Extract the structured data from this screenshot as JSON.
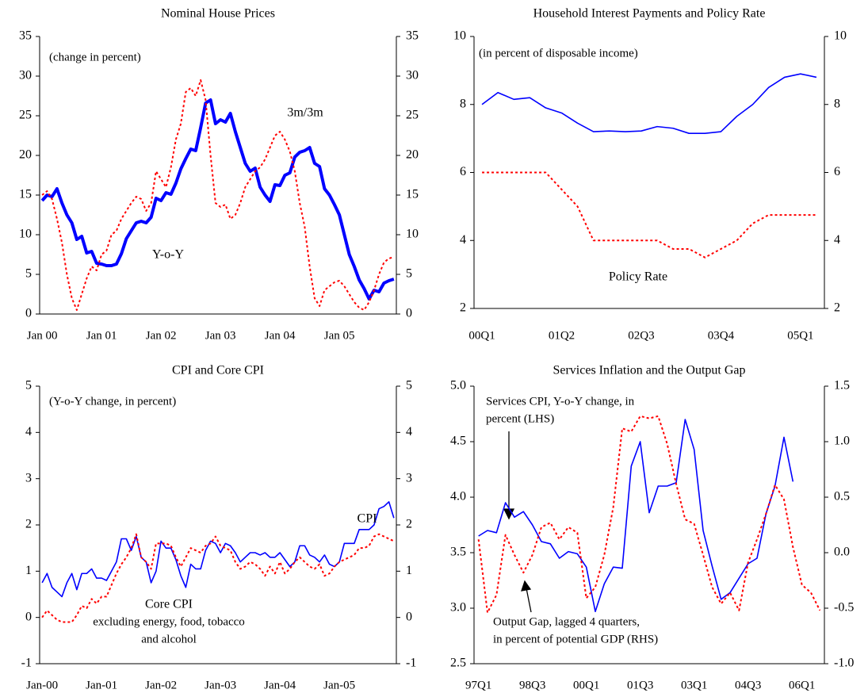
{
  "chart_data": [
    {
      "type": "line",
      "title": "Nominal House Prices",
      "categories": [
        "Jan 00",
        null,
        null,
        null,
        null,
        null,
        null,
        null,
        null,
        null,
        null,
        null,
        "Jan 01",
        null,
        null,
        null,
        null,
        null,
        null,
        null,
        null,
        null,
        null,
        null,
        "Jan 02",
        null,
        null,
        null,
        null,
        null,
        null,
        null,
        null,
        null,
        null,
        null,
        "Jan 03",
        null,
        null,
        null,
        null,
        null,
        null,
        null,
        null,
        null,
        null,
        null,
        "Jan 04",
        null,
        null,
        null,
        null,
        null,
        null,
        null,
        null,
        null,
        null,
        null,
        "Jan 05",
        null,
        null,
        null,
        null,
        null,
        null,
        null,
        null,
        null,
        null,
        null
      ],
      "ylim": [
        0,
        35
      ],
      "yticks": [
        0,
        5,
        10,
        15,
        20,
        25,
        30,
        35
      ],
      "series": [
        {
          "name": "Y-o-Y",
          "color": "#0000ff",
          "style": "bold",
          "values": [
            14.3,
            15.0,
            14.8,
            15.8,
            14.0,
            12.5,
            11.5,
            9.4,
            9.8,
            7.7,
            7.9,
            6.4,
            6.3,
            6.1,
            6.1,
            6.3,
            7.6,
            9.5,
            10.5,
            11.5,
            11.7,
            11.5,
            12.2,
            14.6,
            14.3,
            15.3,
            15.1,
            16.5,
            18.3,
            19.6,
            20.8,
            20.6,
            23.5,
            26.6,
            27.0,
            24.0,
            24.5,
            24.2,
            25.3,
            23.0,
            21.0,
            19.0,
            18.0,
            18.4,
            16.0,
            15.0,
            14.2,
            16.3,
            16.2,
            17.5,
            17.8,
            19.8,
            20.4,
            20.6,
            21.0,
            19.0,
            18.6,
            15.8,
            15.0,
            13.8,
            12.5,
            10.0,
            7.5,
            6.0,
            4.3,
            3.2,
            1.9,
            3.0,
            2.8,
            3.9,
            4.2,
            4.4
          ]
        },
        {
          "name": "3m/3m",
          "color": "#ff0000",
          "style": "dotted",
          "values": [
            15.0,
            15.5,
            14.5,
            12.0,
            9.0,
            5.0,
            2.0,
            0.5,
            2.5,
            4.5,
            6.0,
            5.5,
            7.5,
            8.0,
            10.0,
            10.5,
            12.0,
            13.0,
            14.0,
            14.8,
            14.5,
            13.0,
            14.0,
            18.0,
            17.0,
            16.0,
            18.5,
            22.0,
            24.0,
            28.0,
            28.5,
            27.5,
            29.5,
            27.0,
            20.0,
            14.0,
            13.5,
            13.8,
            12.0,
            12.5,
            14.0,
            16.0,
            17.0,
            18.0,
            18.5,
            19.5,
            21.0,
            22.5,
            23.0,
            22.0,
            20.5,
            18.0,
            14.0,
            11.0,
            6.0,
            2.0,
            1.0,
            3.0,
            3.5,
            4.0,
            4.2,
            3.5,
            2.5,
            1.5,
            0.8,
            0.5,
            1.5,
            3.0,
            5.0,
            6.5,
            7.0,
            7.2
          ]
        }
      ],
      "annotations": [
        {
          "text": "(change in percent)"
        }
      ]
    },
    {
      "type": "line",
      "title": "Household Interest Payments and Policy Rate",
      "categories": [
        "00Q1",
        null,
        null,
        null,
        null,
        "01Q2",
        null,
        null,
        null,
        null,
        "02Q3",
        null,
        null,
        null,
        null,
        "03Q4",
        null,
        null,
        null,
        null,
        "05Q1",
        null
      ],
      "ylim": [
        2,
        10
      ],
      "yticks": [
        2,
        4,
        6,
        8,
        10
      ],
      "series": [
        {
          "color": "#0000ff",
          "style": "solid",
          "values": [
            8.0,
            8.35,
            8.15,
            8.2,
            7.9,
            7.75,
            7.45,
            7.2,
            7.22,
            7.2,
            7.22,
            7.35,
            7.3,
            7.15,
            7.15,
            7.2,
            7.65,
            8.0,
            8.5,
            8.8,
            8.9,
            8.8
          ]
        },
        {
          "name": "Policy Rate",
          "color": "#ff0000",
          "style": "dotted",
          "values": [
            6,
            6,
            6,
            6,
            6,
            5.5,
            5.0,
            4.0,
            4,
            4,
            4,
            4,
            3.75,
            3.75,
            3.5,
            3.75,
            4.0,
            4.5,
            4.75,
            4.75,
            4.75,
            4.75
          ]
        }
      ],
      "annotations": [
        {
          "text": "(in percent of disposable income)"
        }
      ]
    },
    {
      "type": "line",
      "title": "CPI and Core CPI",
      "categories": [
        "Jan-00",
        null,
        null,
        null,
        null,
        null,
        null,
        null,
        null,
        null,
        null,
        null,
        "Jan-01",
        null,
        null,
        null,
        null,
        null,
        null,
        null,
        null,
        null,
        null,
        null,
        "Jan-02",
        null,
        null,
        null,
        null,
        null,
        null,
        null,
        null,
        null,
        null,
        null,
        "Jan-03",
        null,
        null,
        null,
        null,
        null,
        null,
        null,
        null,
        null,
        null,
        null,
        "Jan-04",
        null,
        null,
        null,
        null,
        null,
        null,
        null,
        null,
        null,
        null,
        null,
        "Jan-05",
        null,
        null,
        null,
        null,
        null,
        null,
        null,
        null,
        null,
        null,
        null
      ],
      "ylim": [
        -1,
        5
      ],
      "yticks": [
        -1,
        0,
        1,
        2,
        3,
        4,
        5
      ],
      "series": [
        {
          "name": "CPI",
          "color": "#0000ff",
          "style": "solid",
          "values": [
            0.75,
            0.95,
            0.65,
            0.55,
            0.45,
            0.75,
            0.95,
            0.6,
            0.95,
            0.95,
            1.05,
            0.85,
            0.85,
            0.8,
            1.0,
            1.2,
            1.7,
            1.7,
            1.45,
            1.75,
            1.3,
            1.2,
            0.75,
            1.0,
            1.65,
            1.5,
            1.5,
            1.25,
            0.9,
            0.65,
            1.15,
            1.05,
            1.05,
            1.45,
            1.65,
            1.6,
            1.4,
            1.6,
            1.55,
            1.4,
            1.2,
            1.3,
            1.4,
            1.4,
            1.35,
            1.4,
            1.3,
            1.3,
            1.4,
            1.25,
            1.1,
            1.2,
            1.55,
            1.55,
            1.35,
            1.3,
            1.2,
            1.35,
            1.15,
            1.1,
            1.2,
            1.6,
            1.6,
            1.6,
            1.9,
            1.9,
            1.9,
            2.0,
            2.35,
            2.4,
            2.5,
            2.15
          ]
        },
        {
          "name": "Core CPI",
          "color": "#ff0000",
          "style": "dotted",
          "values": [
            0.0,
            0.15,
            0.05,
            -0.05,
            -0.1,
            -0.1,
            -0.1,
            0.05,
            0.25,
            0.2,
            0.4,
            0.3,
            0.45,
            0.45,
            0.7,
            0.95,
            1.15,
            1.3,
            1.5,
            1.8,
            1.3,
            1.2,
            1.05,
            1.6,
            1.6,
            1.6,
            1.55,
            1.3,
            1.1,
            1.3,
            1.5,
            1.45,
            1.4,
            1.55,
            1.6,
            1.75,
            1.55,
            1.5,
            1.45,
            1.2,
            1.05,
            1.1,
            1.2,
            1.15,
            1.05,
            0.9,
            1.1,
            0.95,
            1.2,
            0.95,
            1.05,
            1.2,
            1.3,
            1.2,
            1.1,
            1.05,
            1.15,
            0.9,
            0.95,
            1.1,
            1.2,
            1.25,
            1.3,
            1.35,
            1.5,
            1.5,
            1.55,
            1.75,
            1.8,
            1.75,
            1.7,
            1.65
          ]
        }
      ],
      "annotations": [
        {
          "text": "(Y-o-Y change, in percent)"
        },
        {
          "lines": [
            "excluding energy, food, tobacco",
            "and alcohol"
          ]
        }
      ]
    },
    {
      "type": "line",
      "title": "Services Inflation and the Output Gap",
      "categories": [
        "97Q1",
        null,
        null,
        null,
        null,
        null,
        "98Q3",
        null,
        null,
        null,
        null,
        null,
        "00Q1",
        null,
        null,
        null,
        null,
        null,
        "01Q3",
        null,
        null,
        null,
        null,
        null,
        "03Q1",
        null,
        null,
        null,
        null,
        null,
        "04Q3",
        null,
        null,
        null,
        null,
        null,
        "06Q1",
        null,
        null
      ],
      "ylim": [
        2.5,
        5
      ],
      "yticks": [
        2.5,
        {
          "value": 3,
          "label": "3.0"
        },
        3.5,
        {
          "value": 4,
          "label": "4.0"
        },
        4.5,
        {
          "value": 5,
          "label": "5.0"
        }
      ],
      "y2lim": [
        -1,
        1.5
      ],
      "y2ticks": [
        {
          "value": -1,
          "label": "-1.0"
        },
        -0.5,
        {
          "value": 0,
          "label": "0.0"
        },
        0.5,
        {
          "value": 1,
          "label": "1.0"
        },
        1.5
      ],
      "series": [
        {
          "color": "#0000ff",
          "style": "solid",
          "values": [
            3.65,
            3.7,
            3.68,
            3.95,
            3.82,
            3.87,
            3.75,
            3.6,
            3.58,
            3.45,
            3.51,
            3.49,
            3.37,
            2.97,
            3.22,
            3.37,
            3.36,
            4.28,
            4.5,
            3.86,
            4.1,
            4.1,
            4.13,
            4.7,
            4.43,
            3.7,
            3.38,
            3.08,
            3.14,
            3.27,
            3.4,
            3.45,
            3.85,
            4.1,
            4.54,
            4.14,
            null,
            null,
            null
          ]
        },
        {
          "axis": "y2",
          "color": "#ff0000",
          "style": "dotted",
          "values": [
            0.12,
            -0.54,
            -0.38,
            0.16,
            -0.02,
            -0.18,
            -0.02,
            0.23,
            0.27,
            0.12,
            0.23,
            0.18,
            -0.41,
            -0.31,
            -0.02,
            0.41,
            1.12,
            1.09,
            1.23,
            1.21,
            1.23,
            0.98,
            0.62,
            0.3,
            0.26,
            -0.02,
            -0.31,
            -0.46,
            -0.36,
            -0.52,
            -0.09,
            0.12,
            0.35,
            0.61,
            0.48,
            0.05,
            -0.29,
            -0.36,
            -0.52
          ]
        }
      ],
      "annotations": [
        {
          "lines": [
            "Services CPI, Y-o-Y change, in",
            "percent (LHS)"
          ]
        },
        {
          "lines": [
            "Output Gap, lagged 4 quarters,",
            "in percent of potential GDP (RHS)"
          ]
        }
      ]
    }
  ]
}
